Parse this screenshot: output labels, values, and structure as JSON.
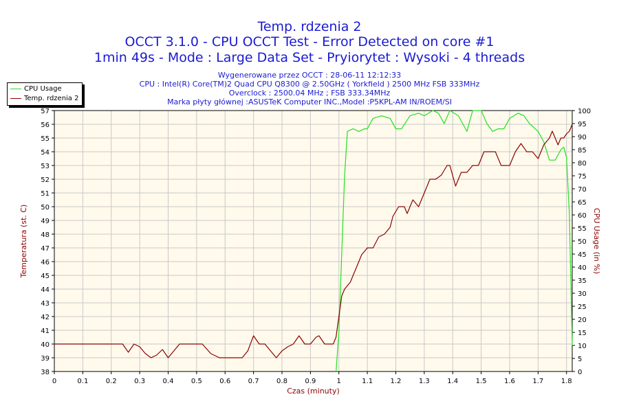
{
  "colors": {
    "title": "#1a1ad2",
    "cpu": "#22e022",
    "temp": "#8b0000",
    "plot_bg": "#fffaec",
    "grid": "#c8c8c8"
  },
  "header": {
    "title": "Temp. rdzenia 2",
    "line2": "OCCT 3.1.0 - CPU OCCT Test - Error Detected on core #1",
    "line3": "1min 49s - Mode : Large Data Set - Pryiorytet : Wysoki - 4 threads",
    "info1": "Wygenerowane przez OCCT : 28-06-11 12:12:33",
    "info2": "CPU : Intel(R) Core(TM)2 Quad CPU Q8300 @ 2.50GHz ( Yorkfield ) 2500 MHz FSB 333MHz",
    "info3": "Overclock : 2500.04 MHz ; FSB 333.34MHz",
    "info4": "Marka płyty głównej :ASUSTeK Computer INC.,Model :P5KPL-AM IN/ROEM/SI"
  },
  "chart_data": {
    "type": "line",
    "xlabel": "Czas (minuty)",
    "ylabel_left": "Temperatura (st. C)",
    "ylabel_right": "CPU Usage (in %)",
    "xlim": [
      0,
      1.82
    ],
    "ylim_left": [
      38,
      57
    ],
    "ylim_right": [
      0,
      100
    ],
    "x_ticks": [
      "0",
      "0.1",
      "0.2",
      "0.3",
      "0.4",
      "0.5",
      "0.6",
      "0.7",
      "0.8",
      "0.9",
      "1",
      "1.1",
      "1.2",
      "1.3",
      "1.4",
      "1.5",
      "1.6",
      "1.7",
      "1.8"
    ],
    "y_left_ticks": [
      "38",
      "39",
      "40",
      "41",
      "42",
      "43",
      "44",
      "45",
      "46",
      "47",
      "48",
      "49",
      "50",
      "51",
      "52",
      "53",
      "54",
      "55",
      "56",
      "57"
    ],
    "y_right_ticks": [
      "0",
      "5",
      "10",
      "15",
      "20",
      "25",
      "30",
      "35",
      "40",
      "45",
      "50",
      "55",
      "60",
      "65",
      "70",
      "75",
      "80",
      "85",
      "90",
      "95",
      "100"
    ],
    "grid": true,
    "legend_position": "top-left",
    "series": [
      {
        "name": "CPU Usage",
        "axis": "right",
        "points": [
          [
            0.99,
            0
          ],
          [
            1.0,
            15
          ],
          [
            1.02,
            75
          ],
          [
            1.03,
            92
          ],
          [
            1.05,
            93
          ],
          [
            1.07,
            92
          ],
          [
            1.09,
            93
          ],
          [
            1.1,
            93
          ],
          [
            1.12,
            97
          ],
          [
            1.15,
            98
          ],
          [
            1.18,
            97
          ],
          [
            1.2,
            93
          ],
          [
            1.22,
            93
          ],
          [
            1.25,
            98
          ],
          [
            1.28,
            99
          ],
          [
            1.3,
            98
          ],
          [
            1.33,
            100
          ],
          [
            1.35,
            99
          ],
          [
            1.37,
            95
          ],
          [
            1.39,
            100
          ],
          [
            1.42,
            98
          ],
          [
            1.45,
            92
          ],
          [
            1.47,
            100
          ],
          [
            1.5,
            100
          ],
          [
            1.52,
            95
          ],
          [
            1.54,
            92
          ],
          [
            1.56,
            93
          ],
          [
            1.58,
            93
          ],
          [
            1.6,
            97
          ],
          [
            1.63,
            99
          ],
          [
            1.65,
            98
          ],
          [
            1.67,
            95
          ],
          [
            1.7,
            92
          ],
          [
            1.72,
            88
          ],
          [
            1.74,
            81
          ],
          [
            1.76,
            81
          ],
          [
            1.78,
            85
          ],
          [
            1.79,
            86
          ],
          [
            1.8,
            82
          ],
          [
            1.81,
            60
          ],
          [
            1.82,
            10
          ]
        ]
      },
      {
        "name": "Temp. rdzenia 2",
        "axis": "left",
        "points": [
          [
            0,
            40
          ],
          [
            0.24,
            40
          ],
          [
            0.26,
            39.4
          ],
          [
            0.28,
            40
          ],
          [
            0.3,
            39.8
          ],
          [
            0.32,
            39.3
          ],
          [
            0.34,
            39
          ],
          [
            0.36,
            39.2
          ],
          [
            0.38,
            39.6
          ],
          [
            0.4,
            39
          ],
          [
            0.42,
            39.5
          ],
          [
            0.44,
            40
          ],
          [
            0.52,
            40
          ],
          [
            0.55,
            39.3
          ],
          [
            0.58,
            39
          ],
          [
            0.66,
            39
          ],
          [
            0.68,
            39.5
          ],
          [
            0.7,
            40.6
          ],
          [
            0.72,
            40
          ],
          [
            0.74,
            40
          ],
          [
            0.76,
            39.5
          ],
          [
            0.78,
            39
          ],
          [
            0.8,
            39.5
          ],
          [
            0.82,
            39.8
          ],
          [
            0.84,
            40
          ],
          [
            0.86,
            40.6
          ],
          [
            0.88,
            40
          ],
          [
            0.9,
            40
          ],
          [
            0.92,
            40.5
          ],
          [
            0.93,
            40.6
          ],
          [
            0.95,
            40
          ],
          [
            0.98,
            40
          ],
          [
            0.99,
            40.5
          ],
          [
            1.0,
            42
          ],
          [
            1.01,
            43.5
          ],
          [
            1.02,
            44
          ],
          [
            1.04,
            44.5
          ],
          [
            1.05,
            45
          ],
          [
            1.06,
            45.5
          ],
          [
            1.07,
            46
          ],
          [
            1.08,
            46.5
          ],
          [
            1.1,
            47
          ],
          [
            1.12,
            47
          ],
          [
            1.14,
            47.8
          ],
          [
            1.16,
            48
          ],
          [
            1.18,
            48.5
          ],
          [
            1.19,
            49.3
          ],
          [
            1.21,
            50
          ],
          [
            1.23,
            50
          ],
          [
            1.24,
            49.5
          ],
          [
            1.26,
            50.5
          ],
          [
            1.28,
            50
          ],
          [
            1.3,
            51
          ],
          [
            1.32,
            52
          ],
          [
            1.34,
            52
          ],
          [
            1.36,
            52.3
          ],
          [
            1.38,
            53
          ],
          [
            1.39,
            53
          ],
          [
            1.41,
            51.5
          ],
          [
            1.43,
            52.5
          ],
          [
            1.45,
            52.5
          ],
          [
            1.47,
            53
          ],
          [
            1.49,
            53
          ],
          [
            1.51,
            54
          ],
          [
            1.53,
            54
          ],
          [
            1.55,
            54
          ],
          [
            1.57,
            53
          ],
          [
            1.6,
            53
          ],
          [
            1.62,
            54
          ],
          [
            1.64,
            54.6
          ],
          [
            1.66,
            54
          ],
          [
            1.68,
            54
          ],
          [
            1.7,
            53.5
          ],
          [
            1.72,
            54.5
          ],
          [
            1.74,
            55
          ],
          [
            1.75,
            55.5
          ],
          [
            1.76,
            55
          ],
          [
            1.77,
            54.5
          ],
          [
            1.78,
            55
          ],
          [
            1.79,
            55
          ],
          [
            1.8,
            55.3
          ],
          [
            1.81,
            55.5
          ],
          [
            1.82,
            56
          ]
        ]
      }
    ]
  }
}
